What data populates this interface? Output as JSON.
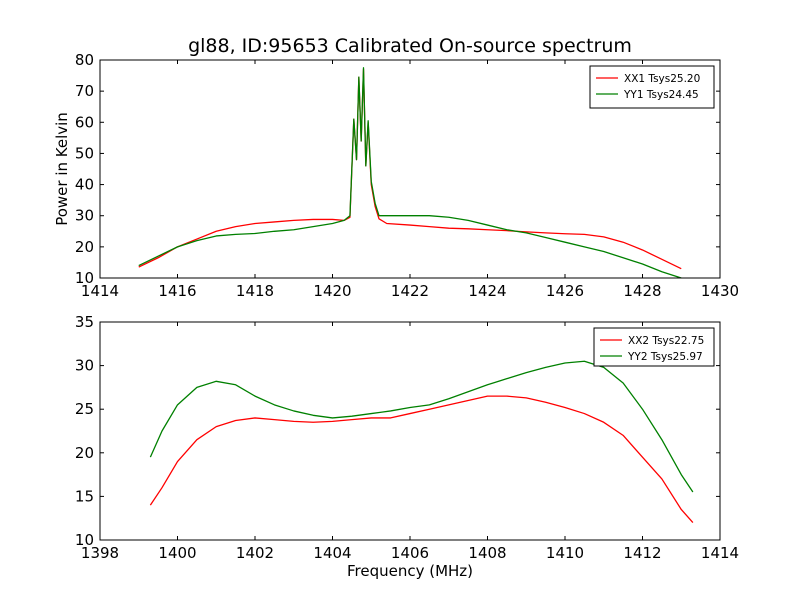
{
  "figure": {
    "title": "gl88, ID:95653 Calibrated On-source spectrum",
    "ylabel": "Power in Kelvin",
    "xlabel": "Frequency (MHz)"
  },
  "colors": {
    "xx": "#ff0000",
    "yy": "#008000",
    "axes": "#000000",
    "bg": "#ffffff"
  },
  "chart_data": [
    {
      "type": "line",
      "title": "gl88, ID:95653 Calibrated On-source spectrum",
      "xlabel": "",
      "ylabel": "Power in Kelvin",
      "xlim": [
        1414,
        1430
      ],
      "ylim": [
        10,
        80
      ],
      "xticks": [
        1414,
        1416,
        1418,
        1420,
        1422,
        1424,
        1426,
        1428,
        1430
      ],
      "yticks": [
        10,
        20,
        30,
        40,
        50,
        60,
        70,
        80
      ],
      "grid": false,
      "legend": "top-right",
      "series": [
        {
          "name": "XX1 Tsys25.20",
          "color": "#ff0000",
          "x": [
            1415.0,
            1415.5,
            1416.0,
            1416.5,
            1417.0,
            1417.5,
            1418.0,
            1418.5,
            1419.0,
            1419.5,
            1420.0,
            1420.3,
            1420.45,
            1420.55,
            1420.62,
            1420.68,
            1420.74,
            1420.8,
            1420.86,
            1420.92,
            1421.0,
            1421.1,
            1421.2,
            1421.4,
            1422.0,
            1422.5,
            1423.0,
            1423.5,
            1424.0,
            1424.5,
            1425.0,
            1425.5,
            1426.0,
            1426.5,
            1427.0,
            1427.5,
            1428.0,
            1428.5,
            1429.0
          ],
          "y": [
            13.5,
            16.5,
            20.0,
            22.5,
            25.0,
            26.5,
            27.5,
            28.0,
            28.5,
            28.8,
            28.8,
            28.5,
            29.5,
            61.0,
            48.0,
            74.5,
            54.0,
            77.0,
            46.0,
            60.0,
            40.0,
            33.0,
            29.0,
            27.5,
            27.0,
            26.5,
            26.0,
            25.8,
            25.5,
            25.2,
            24.8,
            24.5,
            24.2,
            24.0,
            23.2,
            21.5,
            19.0,
            16.0,
            13.0
          ]
        },
        {
          "name": "YY1 Tsys24.45",
          "color": "#008000",
          "x": [
            1415.0,
            1415.5,
            1416.0,
            1416.5,
            1417.0,
            1417.5,
            1418.0,
            1418.5,
            1419.0,
            1419.5,
            1420.0,
            1420.3,
            1420.45,
            1420.55,
            1420.62,
            1420.68,
            1420.74,
            1420.8,
            1420.86,
            1420.92,
            1421.0,
            1421.1,
            1421.2,
            1421.5,
            1422.0,
            1422.5,
            1423.0,
            1423.5,
            1424.0,
            1424.5,
            1425.0,
            1425.5,
            1426.0,
            1426.5,
            1427.0,
            1427.5,
            1428.0,
            1428.5,
            1429.0
          ],
          "y": [
            14.0,
            17.0,
            20.0,
            22.0,
            23.5,
            24.0,
            24.3,
            25.0,
            25.5,
            26.5,
            27.5,
            28.5,
            30.0,
            61.0,
            48.0,
            74.5,
            54.0,
            77.5,
            46.0,
            60.5,
            41.0,
            34.0,
            30.0,
            30.0,
            30.0,
            30.0,
            29.5,
            28.5,
            27.0,
            25.5,
            24.5,
            23.0,
            21.5,
            20.0,
            18.5,
            16.5,
            14.5,
            12.0,
            10.0
          ]
        }
      ]
    },
    {
      "type": "line",
      "title": "",
      "xlabel": "Frequency (MHz)",
      "ylabel": "",
      "xlim": [
        1398,
        1414
      ],
      "ylim": [
        10,
        35
      ],
      "xticks": [
        1398,
        1400,
        1402,
        1404,
        1406,
        1408,
        1410,
        1412,
        1414
      ],
      "yticks": [
        10,
        15,
        20,
        25,
        30,
        35
      ],
      "grid": false,
      "legend": "top-right",
      "series": [
        {
          "name": "XX2 Tsys22.75",
          "color": "#ff0000",
          "x": [
            1399.3,
            1399.6,
            1400.0,
            1400.5,
            1401.0,
            1401.5,
            1402.0,
            1402.5,
            1403.0,
            1403.5,
            1404.0,
            1404.5,
            1405.0,
            1405.5,
            1406.0,
            1406.5,
            1407.0,
            1407.5,
            1408.0,
            1408.5,
            1409.0,
            1409.5,
            1410.0,
            1410.5,
            1411.0,
            1411.5,
            1412.0,
            1412.5,
            1413.0,
            1413.3
          ],
          "y": [
            14.0,
            16.0,
            19.0,
            21.5,
            23.0,
            23.7,
            24.0,
            23.8,
            23.6,
            23.5,
            23.6,
            23.8,
            24.0,
            24.0,
            24.5,
            25.0,
            25.5,
            26.0,
            26.5,
            26.5,
            26.3,
            25.8,
            25.2,
            24.5,
            23.5,
            22.0,
            19.5,
            17.0,
            13.5,
            12.0
          ]
        },
        {
          "name": "YY2 Tsys25.97",
          "color": "#008000",
          "x": [
            1399.3,
            1399.6,
            1400.0,
            1400.5,
            1401.0,
            1401.5,
            1402.0,
            1402.5,
            1403.0,
            1403.5,
            1404.0,
            1404.5,
            1405.0,
            1405.5,
            1406.0,
            1406.5,
            1407.0,
            1407.5,
            1408.0,
            1408.5,
            1409.0,
            1409.5,
            1410.0,
            1410.5,
            1411.0,
            1411.5,
            1412.0,
            1412.5,
            1413.0,
            1413.3
          ],
          "y": [
            19.5,
            22.5,
            25.5,
            27.5,
            28.2,
            27.8,
            26.5,
            25.5,
            24.8,
            24.3,
            24.0,
            24.2,
            24.5,
            24.8,
            25.2,
            25.5,
            26.2,
            27.0,
            27.8,
            28.5,
            29.2,
            29.8,
            30.3,
            30.5,
            29.8,
            28.0,
            25.0,
            21.5,
            17.5,
            15.5
          ]
        }
      ]
    }
  ]
}
